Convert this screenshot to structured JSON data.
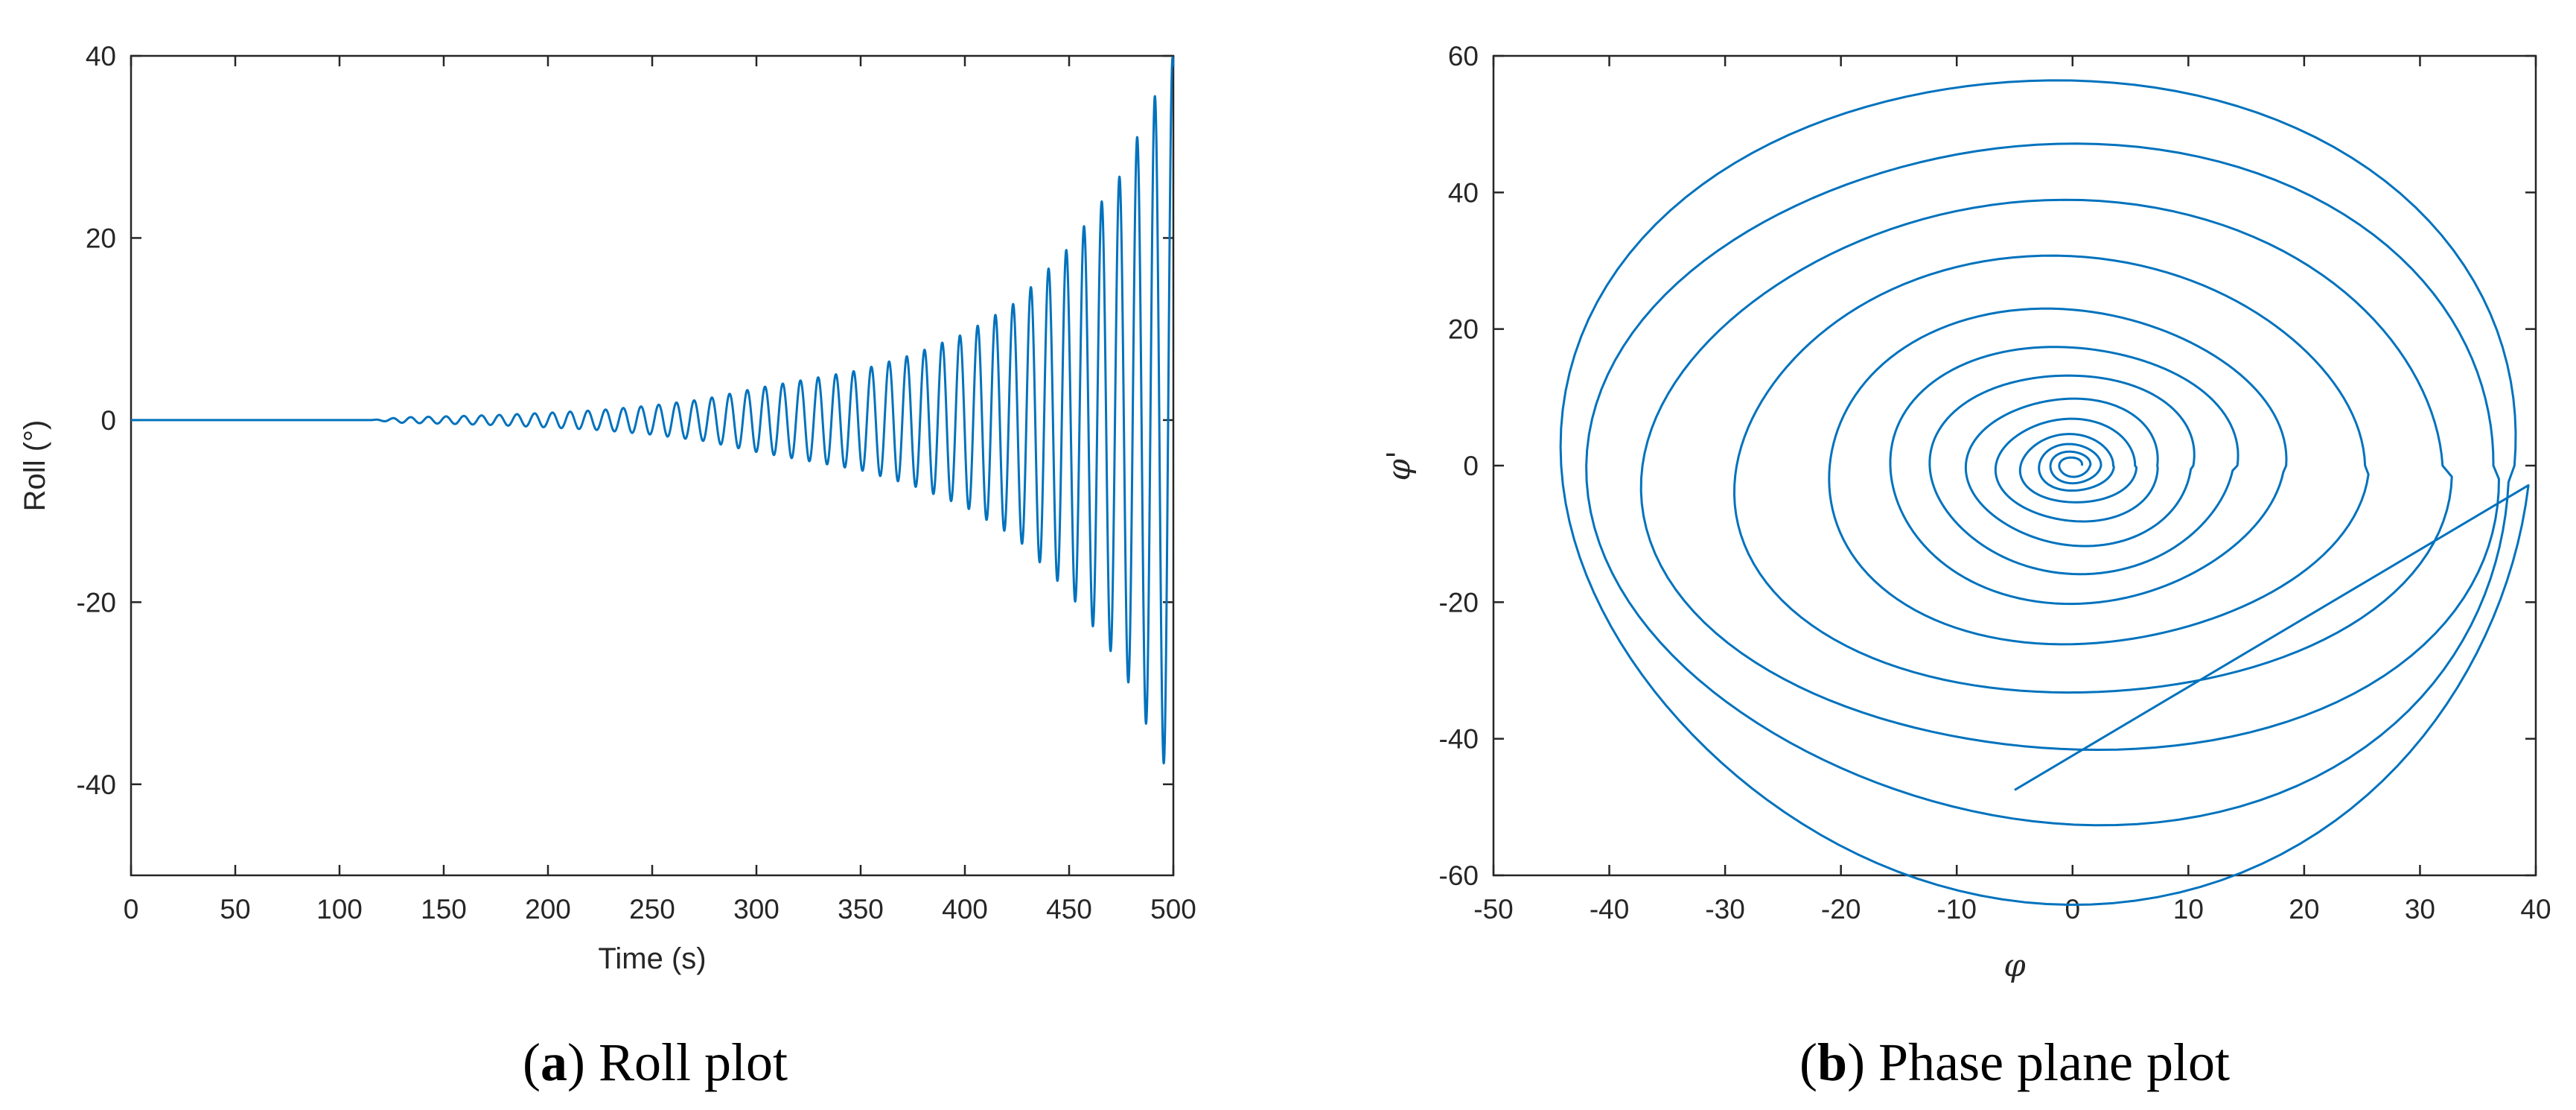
{
  "colors": {
    "series": "#0072BD",
    "axes": "#262626",
    "background": "#ffffff"
  },
  "chart_data": [
    {
      "type": "line",
      "caption_letter": "a",
      "caption_text": " Roll plot",
      "xlabel": "Time (s)",
      "ylabel": "Roll (°)",
      "xlim": [
        0,
        500
      ],
      "ylim": [
        -50,
        40
      ],
      "xticks": [
        0,
        50,
        100,
        150,
        200,
        250,
        300,
        350,
        400,
        450,
        500
      ],
      "yticks": [
        -40,
        -20,
        0,
        20,
        40
      ],
      "grid": false,
      "series": [
        {
          "style": "growing-oscillation",
          "period_s": 8.5,
          "onset_s": 115,
          "envelope_points": [
            [
              0,
              0
            ],
            [
              115,
              0
            ],
            [
              130,
              0.3
            ],
            [
              150,
              0.4
            ],
            [
              175,
              0.55
            ],
            [
              200,
              0.8
            ],
            [
              225,
              1.1
            ],
            [
              250,
              1.6
            ],
            [
              275,
              2.3
            ],
            [
              300,
              3.5
            ],
            [
              325,
              4.5
            ],
            [
              350,
              5.5
            ],
            [
              375,
              7.2
            ],
            [
              400,
              9.5
            ],
            [
              425,
              13
            ],
            [
              450,
              19
            ],
            [
              475,
              27
            ],
            [
              490,
              35
            ],
            [
              500,
              40
            ]
          ]
        }
      ]
    },
    {
      "type": "line",
      "caption_letter": "b",
      "caption_text": " Phase plane plot",
      "xlabel": "φ",
      "ylabel": "φ'",
      "xlim": [
        -50,
        40
      ],
      "ylim": [
        -60,
        60
      ],
      "xticks": [
        -50,
        -40,
        -30,
        -20,
        -10,
        0,
        10,
        20,
        30,
        40
      ],
      "yticks": [
        -60,
        -40,
        -20,
        0,
        20,
        40,
        60
      ],
      "grid": false,
      "series": [
        {
          "style": "spiral",
          "center": [
            0,
            0
          ],
          "turns_x": [
            0.8,
            1.5,
            2.4,
            3.5,
            5.5,
            7.5,
            10.5,
            14,
            18,
            25,
            33,
            38.5,
            40.5
          ],
          "turns_y": [
            1.0,
            1.8,
            2.8,
            4.0,
            6.0,
            9.0,
            12.5,
            16.5,
            21,
            28,
            36,
            44.5,
            55
          ],
          "start": [
            -5,
            -47.5
          ]
        }
      ]
    }
  ]
}
